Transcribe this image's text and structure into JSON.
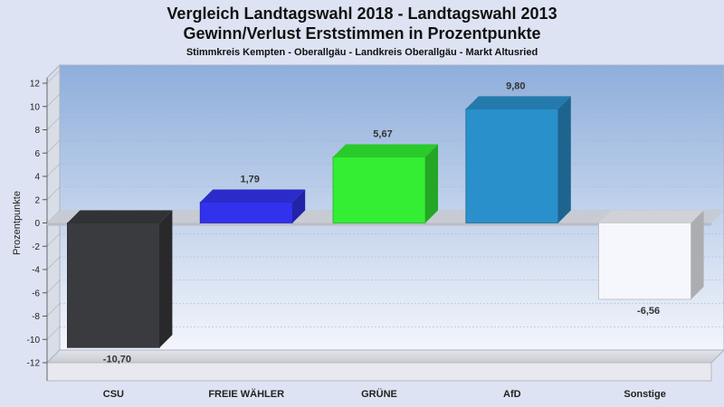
{
  "chart_data": {
    "type": "bar",
    "title": "Vergleich Landtagswahl 2018 - Landtagswahl 2013",
    "subtitle": "Gewinn/Verlust Erststimmen in Prozentpunkte",
    "subsubtitle": "Stimmkreis Kempten - Oberallgäu - Landkreis Oberallgäu - Markt Altusried",
    "ylabel": "Prozentpunkte",
    "xlabel": "",
    "ylim": [
      -12,
      12
    ],
    "yticks": [
      12,
      10,
      8,
      6,
      4,
      2,
      0,
      -2,
      -4,
      -6,
      -8,
      -10,
      -12
    ],
    "categories": [
      "CSU",
      "FREIE WÄHLER",
      "GRÜNE",
      "AfD",
      "Sonstige"
    ],
    "values": [
      -10.7,
      1.79,
      5.67,
      9.8,
      -6.56
    ],
    "value_labels": [
      "-10,70",
      "1,79",
      "5,67",
      "9,80",
      "-6,56"
    ],
    "colors": [
      "#3a3b3f",
      "#3232ee",
      "#33ee33",
      "#2a90cc",
      "#f6f7fc"
    ],
    "grid": true,
    "legend": "none"
  }
}
